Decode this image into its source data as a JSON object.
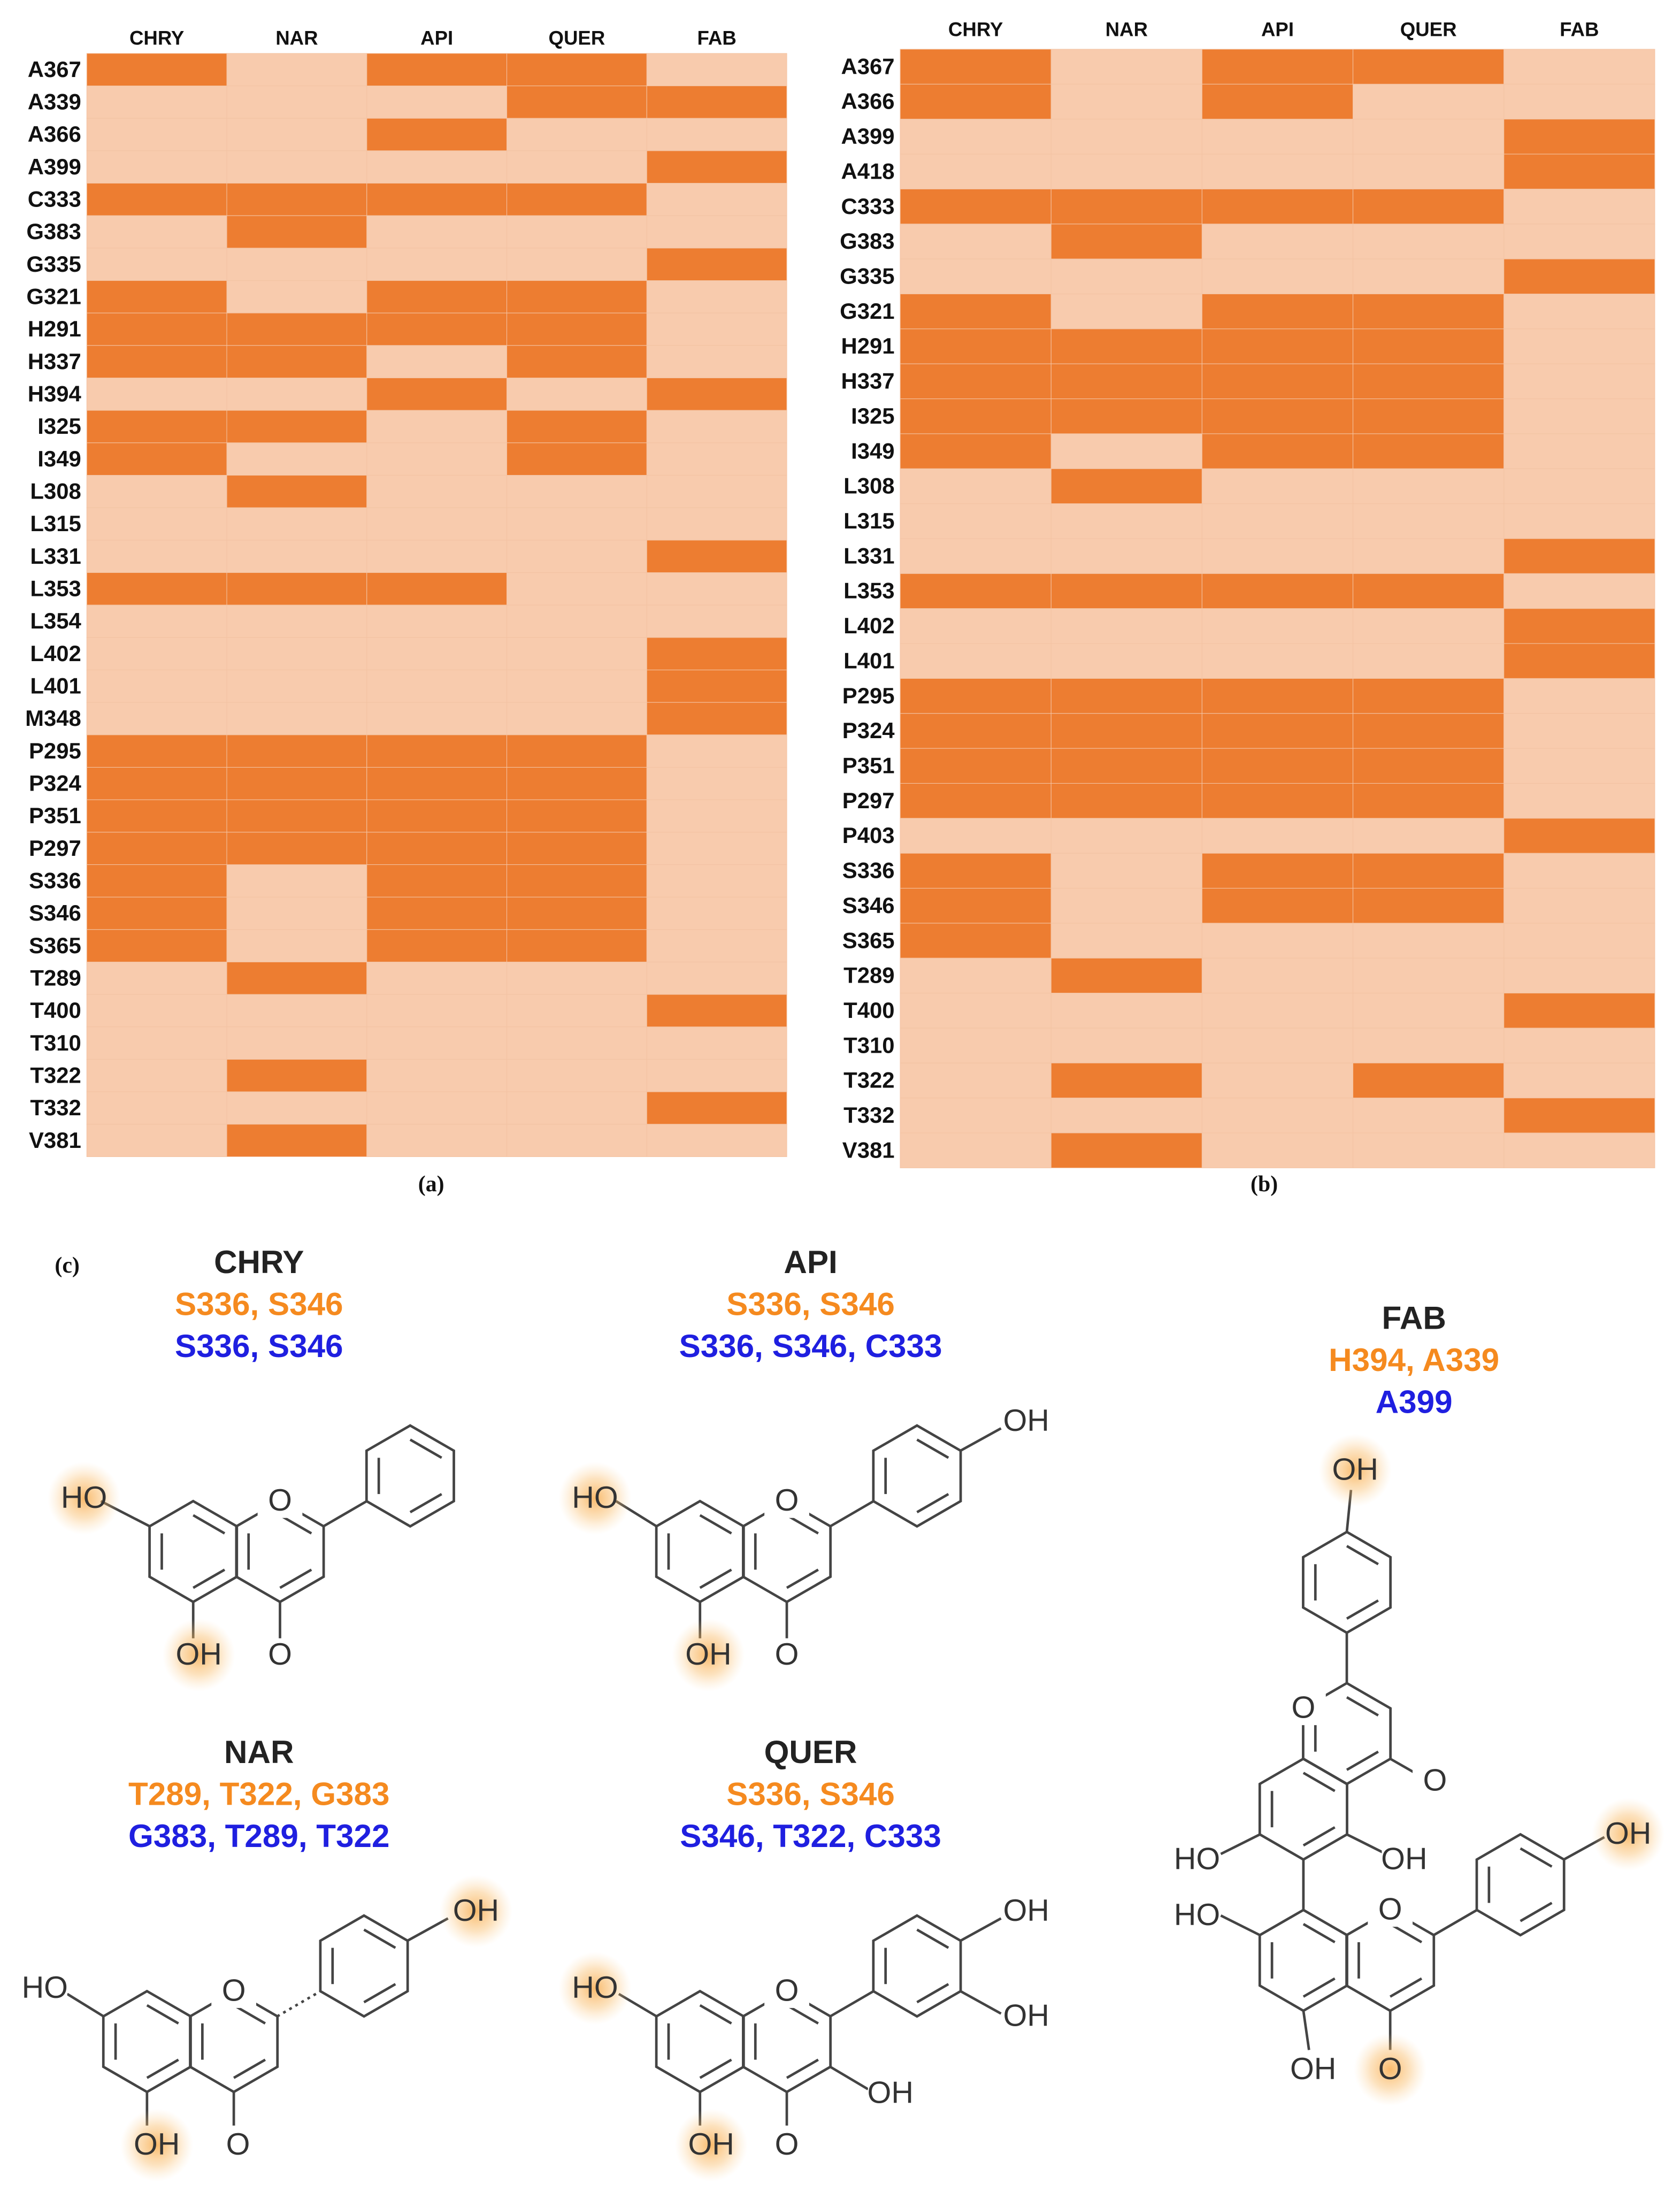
{
  "chart_data": [
    {
      "type": "heatmap",
      "label": "(a)",
      "x_categories": [
        "CHRY",
        "NAR",
        "API",
        "QUER",
        "FAB"
      ],
      "y_categories": [
        "A367",
        "A339",
        "A366",
        "A399",
        "C333",
        "G383",
        "G335",
        "G321",
        "H291",
        "H337",
        "H394",
        "I325",
        "I349",
        "L308",
        "L315",
        "L331",
        "L353",
        "L354",
        "L402",
        "L401",
        "M348",
        "P295",
        "P324",
        "P351",
        "P297",
        "S336",
        "S346",
        "S365",
        "T289",
        "T400",
        "T310",
        "T322",
        "T332",
        "V381"
      ],
      "values": [
        [
          1,
          0,
          1,
          1,
          0
        ],
        [
          0,
          0,
          0,
          1,
          1
        ],
        [
          0,
          0,
          1,
          0,
          0
        ],
        [
          0,
          0,
          0,
          0,
          1
        ],
        [
          1,
          1,
          1,
          1,
          0
        ],
        [
          0,
          1,
          0,
          0,
          0
        ],
        [
          0,
          0,
          0,
          0,
          1
        ],
        [
          1,
          0,
          1,
          1,
          0
        ],
        [
          1,
          1,
          1,
          1,
          0
        ],
        [
          1,
          1,
          0,
          1,
          0
        ],
        [
          0,
          0,
          1,
          0,
          1
        ],
        [
          1,
          1,
          0,
          1,
          0
        ],
        [
          1,
          0,
          0,
          1,
          0
        ],
        [
          0,
          1,
          0,
          0,
          0
        ],
        [
          0,
          0,
          0,
          0,
          0
        ],
        [
          0,
          0,
          0,
          0,
          1
        ],
        [
          1,
          1,
          1,
          0,
          0
        ],
        [
          0,
          0,
          0,
          0,
          0
        ],
        [
          0,
          0,
          0,
          0,
          1
        ],
        [
          0,
          0,
          0,
          0,
          1
        ],
        [
          0,
          0,
          0,
          0,
          1
        ],
        [
          1,
          1,
          1,
          1,
          0
        ],
        [
          1,
          1,
          1,
          1,
          0
        ],
        [
          1,
          1,
          1,
          1,
          0
        ],
        [
          1,
          1,
          1,
          1,
          0
        ],
        [
          1,
          0,
          1,
          1,
          0
        ],
        [
          1,
          0,
          1,
          1,
          0
        ],
        [
          1,
          0,
          1,
          1,
          0
        ],
        [
          0,
          1,
          0,
          0,
          0
        ],
        [
          0,
          0,
          0,
          0,
          1
        ],
        [
          0,
          0,
          0,
          0,
          0
        ],
        [
          0,
          1,
          0,
          0,
          0
        ],
        [
          0,
          0,
          0,
          0,
          1
        ],
        [
          0,
          1,
          0,
          0,
          0
        ]
      ],
      "colors": [
        "#f8cbad",
        "#ed7d31"
      ]
    },
    {
      "type": "heatmap",
      "label": "(b)",
      "x_categories": [
        "CHRY",
        "NAR",
        "API",
        "QUER",
        "FAB"
      ],
      "y_categories": [
        "A367",
        "A366",
        "A399",
        "A418",
        "C333",
        "G383",
        "G335",
        "G321",
        "H291",
        "H337",
        "I325",
        "I349",
        "L308",
        "L315",
        "L331",
        "L353",
        "L402",
        "L401",
        "P295",
        "P324",
        "P351",
        "P297",
        "P403",
        "S336",
        "S346",
        "S365",
        "T289",
        "T400",
        "T310",
        "T322",
        "T332",
        "V381"
      ],
      "values": [
        [
          1,
          0,
          1,
          1,
          0
        ],
        [
          1,
          0,
          1,
          0,
          0
        ],
        [
          0,
          0,
          0,
          0,
          1
        ],
        [
          0,
          0,
          0,
          0,
          1
        ],
        [
          1,
          1,
          1,
          1,
          0
        ],
        [
          0,
          1,
          0,
          0,
          0
        ],
        [
          0,
          0,
          0,
          0,
          1
        ],
        [
          1,
          0,
          1,
          1,
          0
        ],
        [
          1,
          1,
          1,
          1,
          0
        ],
        [
          1,
          1,
          1,
          1,
          0
        ],
        [
          1,
          1,
          1,
          1,
          0
        ],
        [
          1,
          0,
          1,
          1,
          0
        ],
        [
          0,
          1,
          0,
          0,
          0
        ],
        [
          0,
          0,
          0,
          0,
          0
        ],
        [
          0,
          0,
          0,
          0,
          1
        ],
        [
          1,
          1,
          1,
          1,
          0
        ],
        [
          0,
          0,
          0,
          0,
          1
        ],
        [
          0,
          0,
          0,
          0,
          1
        ],
        [
          1,
          1,
          1,
          1,
          0
        ],
        [
          1,
          1,
          1,
          1,
          0
        ],
        [
          1,
          1,
          1,
          1,
          0
        ],
        [
          1,
          1,
          1,
          1,
          0
        ],
        [
          0,
          0,
          0,
          0,
          1
        ],
        [
          1,
          0,
          1,
          1,
          0
        ],
        [
          1,
          0,
          1,
          1,
          0
        ],
        [
          1,
          0,
          0,
          0,
          0
        ],
        [
          0,
          1,
          0,
          0,
          0
        ],
        [
          0,
          0,
          0,
          0,
          1
        ],
        [
          0,
          0,
          0,
          0,
          0
        ],
        [
          0,
          1,
          0,
          1,
          0
        ],
        [
          0,
          0,
          0,
          0,
          1
        ],
        [
          0,
          1,
          0,
          0,
          0
        ]
      ],
      "colors": [
        "#f8cbad",
        "#ed7d31"
      ]
    }
  ],
  "panel_c": {
    "label": "(c)",
    "orange_color": "#f58a1f",
    "blue_color": "#1f1fe0",
    "compounds": [
      {
        "name": "CHRY",
        "orange": "S336, S346",
        "blue": "S336, S346",
        "atoms": [
          "HO",
          "O",
          "OH",
          "O"
        ]
      },
      {
        "name": "API",
        "orange": "S336, S346",
        "blue": "S336, S346, C333",
        "atoms": [
          "HO",
          "O",
          "OH",
          "O",
          "OH"
        ]
      },
      {
        "name": "FAB",
        "orange": "H394, A339",
        "blue": "A399",
        "atoms": [
          "OH",
          "O",
          "O",
          "HO",
          "OH",
          "HO",
          "O",
          "OH",
          "OH",
          "O"
        ]
      },
      {
        "name": "NAR",
        "orange": "T289, T322, G383",
        "blue": "G383, T289, T322",
        "atoms": [
          "HO",
          "O",
          "OH",
          "OH",
          "O"
        ]
      },
      {
        "name": "QUER",
        "orange": "S336, S346",
        "blue": "S346, T322, C333",
        "atoms": [
          "HO",
          "O",
          "OH",
          "OH",
          "OH",
          "OH",
          "O"
        ]
      }
    ]
  }
}
